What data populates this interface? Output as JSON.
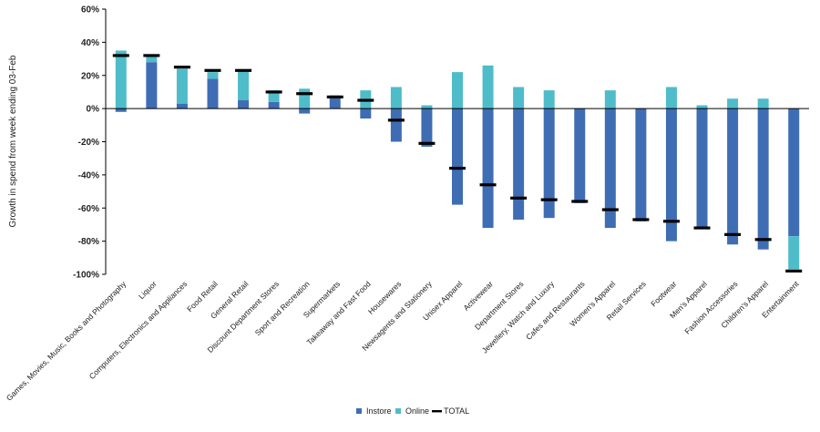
{
  "chart_data": {
    "type": "bar",
    "stacked": true,
    "ylabel": "Growth in spend from week ending 03-Feb",
    "xlabel": "",
    "ylim": [
      -100,
      60
    ],
    "yticks": [
      60,
      40,
      20,
      0,
      -20,
      -40,
      -60,
      -80,
      -100
    ],
    "ytick_labels": [
      "60%",
      "40%",
      "20%",
      "0%",
      "-20%",
      "-40%",
      "-60%",
      "-80%",
      "-100%"
    ],
    "grid": false,
    "legend_position": "bottom",
    "colors": {
      "instore": "#3f6db4",
      "online": "#4fbcca",
      "total": "#000000"
    },
    "categories": [
      "Games, Movies, Music, Books and Photography",
      "Liquor",
      "Computers, Electronics and Appliances",
      "Food Retail",
      "General Retail",
      "Discount Department Stores",
      "Sport and Recreation",
      "Supermarkets",
      "Takeaway and Fast Food",
      "Housewares",
      "Newsagents and Stationery",
      "Unisex Apparel",
      "Activewear",
      "Department Stores",
      "Jewellery, Watch and Luxury",
      "Cafes and Restaurants",
      "Women's Apparel",
      "Retail Services",
      "Footwear",
      "Men's Apparel",
      "Fashion Accessories",
      "Children's Apparel",
      "Entertainment"
    ],
    "series": [
      {
        "name": "Instore",
        "values": [
          -2,
          28,
          3,
          18,
          5,
          4,
          -3,
          7,
          -6,
          -20,
          -23,
          -58,
          -72,
          -67,
          -66,
          -57,
          -72,
          -68,
          -80,
          -72,
          -82,
          -85,
          -77
        ]
      },
      {
        "name": "Online",
        "values": [
          35,
          4,
          21,
          4,
          18,
          7,
          12,
          1,
          11,
          13,
          2,
          22,
          26,
          13,
          11,
          0,
          11,
          0,
          13,
          2,
          6,
          6,
          -20
        ]
      },
      {
        "name": "TOTAL",
        "values": [
          32,
          32,
          25,
          23,
          23,
          10,
          9,
          7,
          5,
          -7,
          -21,
          -36,
          -46,
          -54,
          -55,
          -56,
          -61,
          -67,
          -68,
          -72,
          -76,
          -79,
          -98
        ]
      }
    ]
  }
}
